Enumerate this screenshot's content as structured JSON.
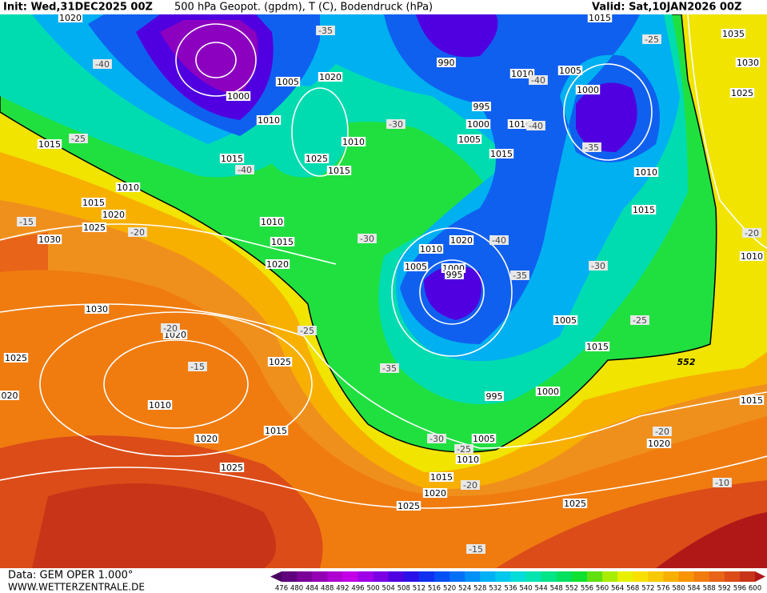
{
  "header": {
    "init": "Init: Wed,31DEC2025 00Z",
    "title": "500 hPa Geopot. (gpdm), T (C), Bodendruck (hPa)",
    "valid": "Valid: Sat,10JAN2026 00Z"
  },
  "map": {
    "isobar_labels": [
      "1020",
      "1035",
      "1030",
      "1025",
      "1015",
      "990",
      "1010",
      "1005",
      "1000",
      "1005",
      "1020",
      "1000",
      "1010",
      "995",
      "1000",
      "1010",
      "1005",
      "1010",
      "1025",
      "1015",
      "1015",
      "1015",
      "1015",
      "1010",
      "1010",
      "1015",
      "1020",
      "1025",
      "1030",
      "1010",
      "1015",
      "1015",
      "1020",
      "1010",
      "1005",
      "1000",
      "995",
      "1020",
      "1030",
      "1020",
      "1025",
      "1025",
      "1005",
      "1015",
      "1010",
      "995",
      "1000",
      "1015",
      "1020",
      "1005",
      "1010",
      "1025",
      "1015",
      "1020",
      "1025",
      "1025",
      "1020",
      "1015",
      "1010",
      "020"
    ],
    "isotherm_labels": [
      "-35",
      "-25",
      "-40",
      "-40",
      "-40",
      "-30",
      "-35",
      "-25",
      "-40",
      "-15",
      "-20",
      "-30",
      "-40",
      "-35",
      "-30",
      "-20",
      "-25",
      "-25",
      "-20",
      "-15",
      "-35",
      "-30",
      "-25",
      "-20",
      "-20",
      "-10",
      "-15"
    ],
    "contour_label": "552"
  },
  "footer": {
    "source": "Data: GEM OPER 1.000°",
    "site": "WWW.WETTERZENTRALE.DE"
  },
  "scale": {
    "ticks": [
      476,
      480,
      484,
      488,
      492,
      496,
      500,
      504,
      508,
      512,
      516,
      520,
      524,
      528,
      532,
      536,
      540,
      544,
      548,
      552,
      556,
      560,
      564,
      568,
      572,
      576,
      580,
      584,
      588,
      592,
      596,
      600
    ],
    "colors": [
      "#4a0060",
      "#60007c",
      "#7a0098",
      "#9400b4",
      "#ae00d0",
      "#c400e8",
      "#a000e8",
      "#7c00e4",
      "#5000e0",
      "#2c10e8",
      "#1030f0",
      "#0050f4",
      "#0070f8",
      "#0090f8",
      "#00b0f4",
      "#00c8ec",
      "#00dcd8",
      "#00e4b0",
      "#00e488",
      "#00e060",
      "#10e030",
      "#60e010",
      "#a8ec00",
      "#e8f000",
      "#f8e000",
      "#f8c800",
      "#f8b000",
      "#f89400",
      "#f07c10",
      "#e86418",
      "#dc4c18",
      "#c83418",
      "#b01818"
    ]
  }
}
